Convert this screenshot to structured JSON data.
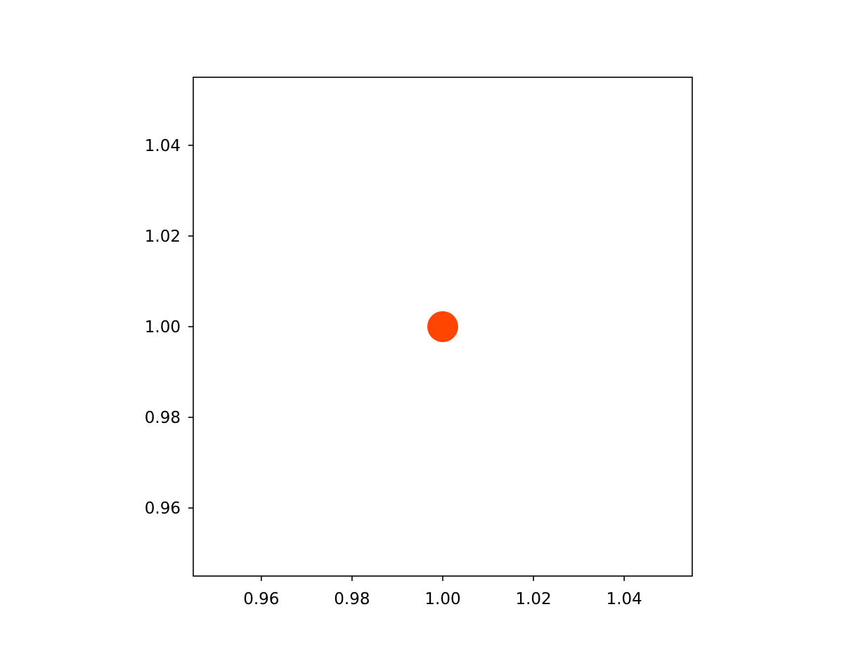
{
  "chart_data": {
    "type": "scatter",
    "title": "",
    "xlabel": "",
    "ylabel": "",
    "xlim": [
      0.945,
      1.055
    ],
    "ylim": [
      0.945,
      1.055
    ],
    "x_ticks": [
      0.96,
      0.98,
      1.0,
      1.02,
      1.04
    ],
    "y_ticks": [
      0.96,
      0.98,
      1.0,
      1.02,
      1.04
    ],
    "x_tick_labels": [
      "0.96",
      "0.98",
      "1.00",
      "1.02",
      "1.04"
    ],
    "y_tick_labels": [
      "0.96",
      "0.98",
      "1.00",
      "1.02",
      "1.04"
    ],
    "grid": false,
    "legend": "none",
    "series": [
      {
        "color": "#ff4500",
        "points": [
          {
            "x": 1.0,
            "y": 1.0
          }
        ]
      }
    ]
  }
}
